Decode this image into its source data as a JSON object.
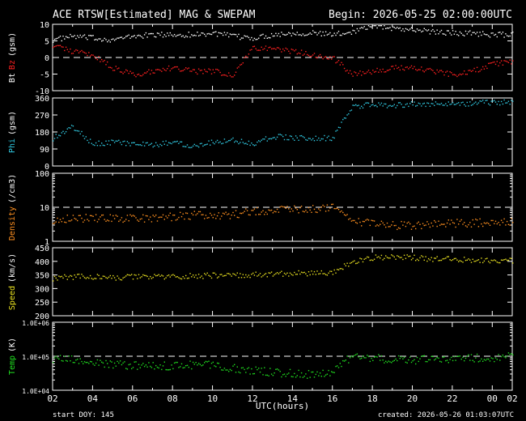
{
  "header": {
    "title": "ACE RTSW[Estimated] MAG & SWEPAM",
    "begin": "Begin: 2026-05-25 02:00:00UTC"
  },
  "footer": {
    "start_doy": "start DOY: 145",
    "created": "created: 2026-05-26 01:03:07UTC"
  },
  "colors": {
    "bt": "#ffffff",
    "bz": "#ff2020",
    "phi": "#30c8e0",
    "density": "#ff9020",
    "speed": "#e8e020",
    "temp": "#20e020",
    "axis": "#ffffff",
    "background": "#000000"
  },
  "chart_data": [
    {
      "type": "scatter",
      "name_id": "mag-bt-bz",
      "ylabel": "Bt Bz (gsm)",
      "ylabel_parts": [
        "Bt",
        "Bz",
        "(gsm)"
      ],
      "ylim": [
        -10,
        10
      ],
      "yticks": [
        -10,
        -5,
        0,
        5,
        10
      ],
      "dashed_line": 0,
      "x": [
        0,
        1,
        2,
        3,
        4,
        5,
        6,
        7,
        8,
        9,
        10,
        11,
        12,
        13,
        14,
        15,
        16,
        17,
        18,
        19,
        20,
        21,
        22,
        23
      ],
      "series": [
        {
          "name": "Bt",
          "values": [
            5.5,
            6.5,
            6,
            5.5,
            6.5,
            7,
            7,
            7,
            7.5,
            6.5,
            6,
            7,
            7.5,
            7.5,
            7,
            8,
            10,
            9,
            8.5,
            8,
            7.5,
            7.5,
            7,
            7
          ]
        },
        {
          "name": "Bz",
          "values": [
            4,
            2,
            1,
            -3,
            -5,
            -4,
            -3,
            -4,
            -4,
            -5,
            3,
            3,
            2,
            1,
            0,
            -5,
            -4,
            -3,
            -3,
            -4,
            -5,
            -4,
            -2,
            -1
          ]
        }
      ]
    },
    {
      "type": "scatter",
      "name_id": "phi",
      "ylabel": "Phi (gsm)",
      "ylim": [
        0,
        360
      ],
      "yticks": [
        0,
        90,
        180,
        270,
        360
      ],
      "x": [
        0,
        1,
        2,
        3,
        4,
        5,
        6,
        7,
        8,
        9,
        10,
        11,
        12,
        13,
        14,
        15,
        16,
        17,
        18,
        19,
        20,
        21,
        22,
        23
      ],
      "values": [
        150,
        210,
        120,
        130,
        120,
        110,
        130,
        110,
        130,
        140,
        120,
        160,
        150,
        150,
        150,
        320,
        325,
        325,
        330,
        330,
        330,
        335,
        340,
        340
      ]
    },
    {
      "type": "scatter",
      "name_id": "density",
      "ylabel": "Density (/cm3)",
      "scale": "log",
      "ylim": [
        1,
        100
      ],
      "yticks": [
        1,
        10,
        100
      ],
      "dashed_line": 10,
      "x": [
        0,
        1,
        2,
        3,
        4,
        5,
        6,
        7,
        8,
        9,
        10,
        11,
        12,
        13,
        14,
        15,
        16,
        17,
        18,
        19,
        20,
        21,
        22,
        23
      ],
      "values": [
        4.5,
        5,
        5,
        4.8,
        4.8,
        5,
        5.5,
        6,
        6.2,
        6,
        8,
        8.5,
        9,
        9.5,
        10,
        4,
        3.5,
        3,
        3,
        3.2,
        3.5,
        3.5,
        4,
        4
      ]
    },
    {
      "type": "scatter",
      "name_id": "speed",
      "ylabel": "Speed (km/s)",
      "ylim": [
        200,
        450
      ],
      "yticks": [
        200,
        250,
        300,
        350,
        400,
        450
      ],
      "x": [
        0,
        1,
        2,
        3,
        4,
        5,
        6,
        7,
        8,
        9,
        10,
        11,
        12,
        13,
        14,
        15,
        16,
        17,
        18,
        19,
        20,
        21,
        22,
        23
      ],
      "values": [
        340,
        345,
        345,
        340,
        345,
        345,
        345,
        348,
        350,
        350,
        352,
        355,
        357,
        358,
        360,
        400,
        415,
        420,
        415,
        410,
        410,
        408,
        405,
        405
      ]
    },
    {
      "type": "scatter",
      "name_id": "temp",
      "ylabel": "Temp (K)",
      "scale": "log",
      "ylim": [
        10000,
        1000000
      ],
      "yticks": [
        10000,
        100000,
        1000000
      ],
      "ytick_labels": [
        "1.0E+04",
        "1.0E+05",
        "1.0E+06"
      ],
      "dashed_line": 100000,
      "x": [
        0,
        1,
        2,
        3,
        4,
        5,
        6,
        7,
        8,
        9,
        10,
        11,
        12,
        13,
        14,
        15,
        16,
        17,
        18,
        19,
        20,
        21,
        22,
        23
      ],
      "values": [
        90000,
        80000,
        65000,
        60000,
        55000,
        52000,
        55000,
        58000,
        60000,
        45000,
        40000,
        35000,
        32000,
        30000,
        35000,
        100000,
        90000,
        85000,
        80000,
        85000,
        90000,
        90000,
        95000,
        100000
      ]
    }
  ],
  "x_axis": {
    "label": "UTC(hours)",
    "range_hours": [
      0,
      23
    ],
    "tick_labels": [
      "02",
      "04",
      "06",
      "08",
      "10",
      "12",
      "14",
      "16",
      "18",
      "20",
      "22",
      "00",
      "02"
    ]
  }
}
